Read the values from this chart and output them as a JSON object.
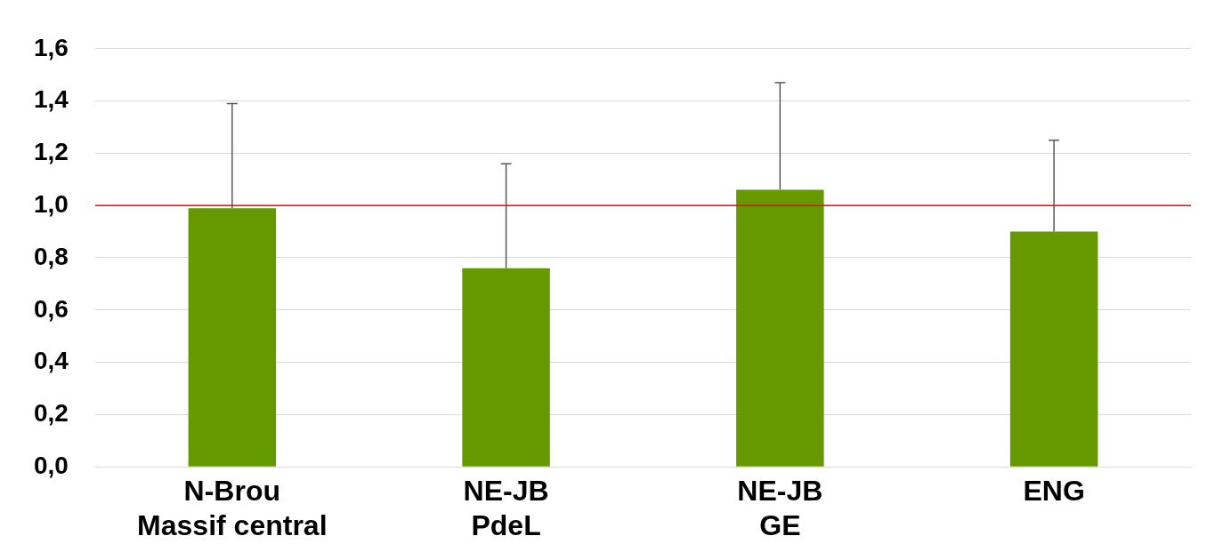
{
  "chart_data": {
    "type": "bar",
    "categories": [
      "N-Brou\nMassif central",
      "NE-JB\nPdeL",
      "NE-JB\nGE",
      "ENG"
    ],
    "values": [
      0.99,
      0.76,
      1.06,
      0.9
    ],
    "errors": [
      [
        0.99,
        1.39
      ],
      [
        0.76,
        1.16
      ],
      [
        1.06,
        1.47
      ],
      [
        0.9,
        1.25
      ]
    ],
    "color": "#669900",
    "ylim": [
      0,
      1.6
    ],
    "yticks": [
      {
        "value": 0,
        "label": "0,0"
      },
      {
        "value": 0.2,
        "label": "0,2"
      },
      {
        "value": 0.4,
        "label": "0,4"
      },
      {
        "value": 0.6,
        "label": "0,6"
      },
      {
        "value": 0.8,
        "label": "0,8"
      },
      {
        "value": 1,
        "label": "1,0"
      },
      {
        "value": 1.2,
        "label": "1,2"
      },
      {
        "value": 1.4,
        "label": "1,4"
      },
      {
        "value": 1.6,
        "label": "1,6"
      }
    ],
    "ref_lines": [
      {
        "axis": "y",
        "value": 1,
        "color": "#ff0000"
      }
    ],
    "grid": "y",
    "legend": false
  }
}
